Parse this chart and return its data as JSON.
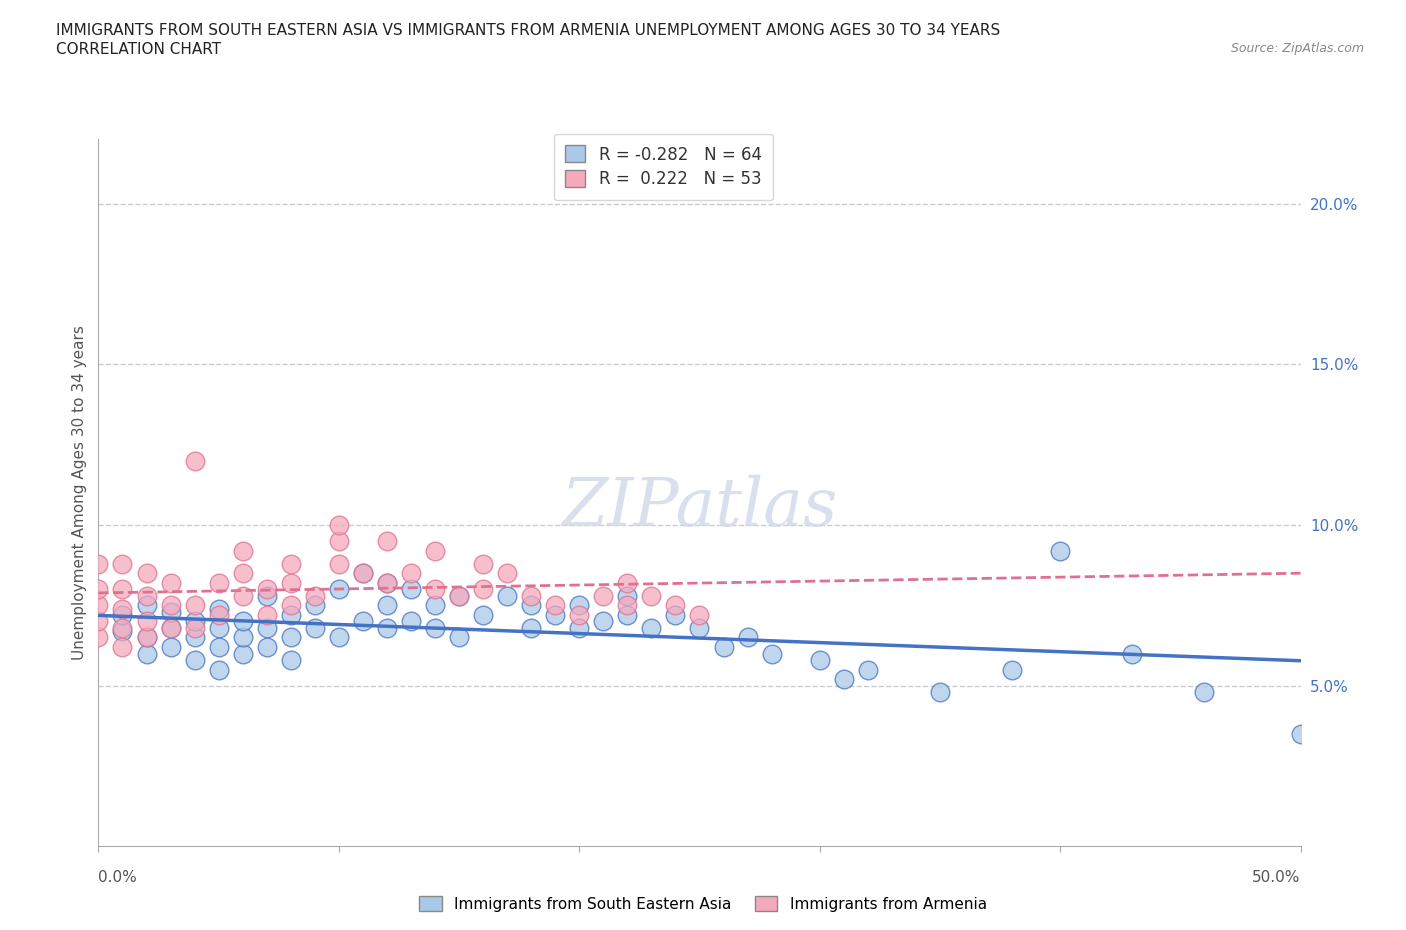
{
  "title_line1": "IMMIGRANTS FROM SOUTH EASTERN ASIA VS IMMIGRANTS FROM ARMENIA UNEMPLOYMENT AMONG AGES 30 TO 34 YEARS",
  "title_line2": "CORRELATION CHART",
  "source_text": "Source: ZipAtlas.com",
  "ylabel": "Unemployment Among Ages 30 to 34 years",
  "xlim": [
    0.0,
    0.5
  ],
  "ylim": [
    0.0,
    0.22
  ],
  "ytick_values": [
    0.05,
    0.1,
    0.15,
    0.2
  ],
  "ytick_labels": [
    "5.0%",
    "10.0%",
    "15.0%",
    "20.0%"
  ],
  "watermark": "ZIPatlas",
  "legend_r1": "R = -0.282",
  "legend_n1": "N = 64",
  "legend_r2": "R =  0.222",
  "legend_n2": "N = 53",
  "color_sea": "#aac9e8",
  "color_arm": "#f5aabb",
  "color_sea_line": "#4472c4",
  "color_arm_line": "#e07090",
  "color_title": "#222222",
  "color_source": "#888888",
  "sea_scatter_x": [
    0.01,
    0.01,
    0.02,
    0.02,
    0.02,
    0.03,
    0.03,
    0.03,
    0.04,
    0.04,
    0.04,
    0.05,
    0.05,
    0.05,
    0.05,
    0.06,
    0.06,
    0.06,
    0.07,
    0.07,
    0.07,
    0.08,
    0.08,
    0.08,
    0.09,
    0.09,
    0.1,
    0.1,
    0.11,
    0.11,
    0.12,
    0.12,
    0.12,
    0.13,
    0.13,
    0.14,
    0.14,
    0.15,
    0.15,
    0.16,
    0.17,
    0.18,
    0.18,
    0.19,
    0.2,
    0.2,
    0.21,
    0.22,
    0.22,
    0.23,
    0.24,
    0.25,
    0.26,
    0.27,
    0.28,
    0.3,
    0.31,
    0.32,
    0.35,
    0.38,
    0.4,
    0.43,
    0.46,
    0.5
  ],
  "sea_scatter_y": [
    0.067,
    0.072,
    0.06,
    0.065,
    0.075,
    0.062,
    0.068,
    0.073,
    0.058,
    0.065,
    0.07,
    0.055,
    0.062,
    0.068,
    0.074,
    0.06,
    0.065,
    0.07,
    0.062,
    0.068,
    0.078,
    0.058,
    0.065,
    0.072,
    0.068,
    0.075,
    0.065,
    0.08,
    0.07,
    0.085,
    0.068,
    0.075,
    0.082,
    0.07,
    0.08,
    0.068,
    0.075,
    0.065,
    0.078,
    0.072,
    0.078,
    0.068,
    0.075,
    0.072,
    0.075,
    0.068,
    0.07,
    0.072,
    0.078,
    0.068,
    0.072,
    0.068,
    0.062,
    0.065,
    0.06,
    0.058,
    0.052,
    0.055,
    0.048,
    0.055,
    0.092,
    0.06,
    0.048,
    0.035
  ],
  "arm_scatter_x": [
    0.0,
    0.0,
    0.0,
    0.0,
    0.0,
    0.01,
    0.01,
    0.01,
    0.01,
    0.01,
    0.02,
    0.02,
    0.02,
    0.02,
    0.03,
    0.03,
    0.03,
    0.04,
    0.04,
    0.05,
    0.05,
    0.06,
    0.06,
    0.07,
    0.07,
    0.08,
    0.08,
    0.09,
    0.1,
    0.1,
    0.11,
    0.12,
    0.13,
    0.14,
    0.15,
    0.16,
    0.17,
    0.18,
    0.19,
    0.2,
    0.21,
    0.22,
    0.22,
    0.23,
    0.24,
    0.25,
    0.14,
    0.16,
    0.1,
    0.12,
    0.08,
    0.06,
    0.04
  ],
  "arm_scatter_y": [
    0.065,
    0.07,
    0.075,
    0.08,
    0.088,
    0.062,
    0.068,
    0.074,
    0.08,
    0.088,
    0.065,
    0.07,
    0.078,
    0.085,
    0.068,
    0.075,
    0.082,
    0.068,
    0.075,
    0.072,
    0.082,
    0.078,
    0.085,
    0.072,
    0.08,
    0.075,
    0.082,
    0.078,
    0.088,
    0.095,
    0.085,
    0.082,
    0.085,
    0.08,
    0.078,
    0.08,
    0.085,
    0.078,
    0.075,
    0.072,
    0.078,
    0.075,
    0.082,
    0.078,
    0.075,
    0.072,
    0.092,
    0.088,
    0.1,
    0.095,
    0.088,
    0.092,
    0.12
  ]
}
